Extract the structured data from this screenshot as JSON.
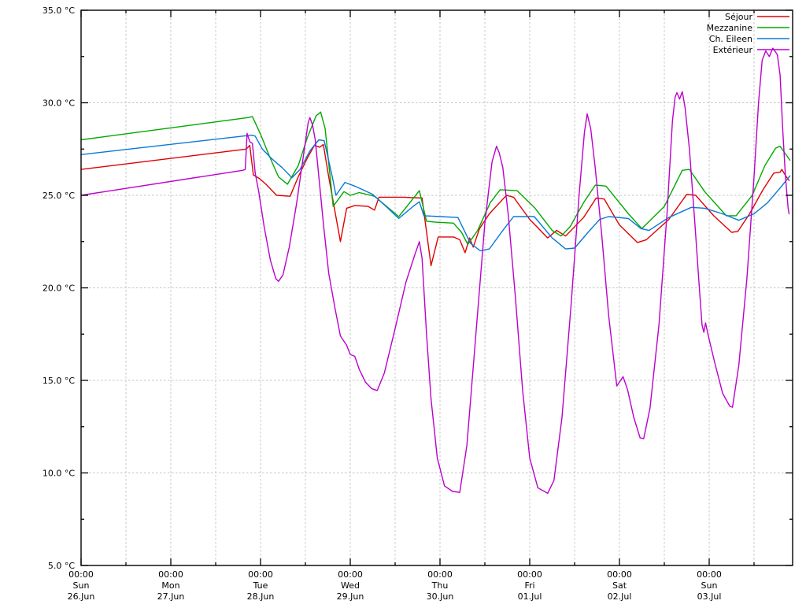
{
  "chart_data": {
    "type": "line",
    "title": "",
    "y_axis": {
      "min": 5,
      "max": 35,
      "major_step": 5,
      "minor_step": 2.5,
      "unit": "°C",
      "tick_values": [
        35,
        30,
        25,
        20,
        15,
        10,
        5
      ],
      "tick_labels": [
        "35.0 °C",
        "30.0 °C",
        "25.0 °C",
        "20.0 °C",
        "15.0 °C",
        "10.0 °C",
        "5.0 °C"
      ]
    },
    "x_axis": {
      "unit": "days",
      "range_days": [
        0,
        7.93
      ],
      "minor_step_days": 0.5,
      "majors": [
        {
          "day": 0,
          "time": "00:00",
          "weekday": "Sun",
          "date": "26.Jun"
        },
        {
          "day": 1,
          "time": "00:00",
          "weekday": "Mon",
          "date": "27.Jun"
        },
        {
          "day": 2,
          "time": "00:00",
          "weekday": "Tue",
          "date": "28.Jun"
        },
        {
          "day": 3,
          "time": "00:00",
          "weekday": "Wed",
          "date": "29.Jun"
        },
        {
          "day": 4,
          "time": "00:00",
          "weekday": "Thu",
          "date": "30.Jun"
        },
        {
          "day": 5,
          "time": "00:00",
          "weekday": "Fri",
          "date": "01.Jul"
        },
        {
          "day": 6,
          "time": "00:00",
          "weekday": "Sat",
          "date": "02.Jul"
        },
        {
          "day": 7,
          "time": "00:00",
          "weekday": "Sun",
          "date": "03.Jul"
        }
      ]
    },
    "grid": {
      "show": true,
      "style": "dashed",
      "color": "#c4c4c4"
    },
    "legend": {
      "position": "top-right",
      "entries": [
        "Séjour",
        "Mezzanine",
        "Ch. Eileen",
        "Extérieur"
      ]
    },
    "series": [
      {
        "name": "Séjour",
        "color": "#e00000",
        "points": [
          [
            0,
            26.4
          ],
          [
            1.84,
            27.5
          ],
          [
            1.88,
            27.7
          ],
          [
            1.92,
            26.1
          ],
          [
            1.99,
            25.9
          ],
          [
            2.06,
            25.6
          ],
          [
            2.18,
            25.0
          ],
          [
            2.33,
            24.95
          ],
          [
            2.42,
            26.0
          ],
          [
            2.52,
            27.0
          ],
          [
            2.6,
            27.7
          ],
          [
            2.66,
            27.6
          ],
          [
            2.7,
            27.75
          ],
          [
            2.76,
            26.0
          ],
          [
            2.89,
            22.5
          ],
          [
            2.96,
            24.3
          ],
          [
            3.05,
            24.45
          ],
          [
            3.2,
            24.4
          ],
          [
            3.27,
            24.2
          ],
          [
            3.32,
            24.9
          ],
          [
            3.6,
            24.9
          ],
          [
            3.8,
            24.85
          ],
          [
            3.9,
            21.2
          ],
          [
            3.98,
            22.75
          ],
          [
            4.15,
            22.75
          ],
          [
            4.22,
            22.6
          ],
          [
            4.28,
            21.9
          ],
          [
            4.33,
            22.7
          ],
          [
            4.37,
            22.2
          ],
          [
            4.44,
            23.2
          ],
          [
            4.55,
            24.0
          ],
          [
            4.74,
            25.0
          ],
          [
            4.82,
            24.9
          ],
          [
            5.0,
            23.7
          ],
          [
            5.2,
            22.7
          ],
          [
            5.3,
            23.1
          ],
          [
            5.4,
            22.8
          ],
          [
            5.6,
            23.8
          ],
          [
            5.74,
            24.85
          ],
          [
            5.83,
            24.8
          ],
          [
            6.0,
            23.4
          ],
          [
            6.2,
            22.45
          ],
          [
            6.3,
            22.6
          ],
          [
            6.55,
            23.7
          ],
          [
            6.75,
            25.05
          ],
          [
            6.85,
            25.0
          ],
          [
            7.05,
            23.9
          ],
          [
            7.25,
            23.0
          ],
          [
            7.32,
            23.05
          ],
          [
            7.45,
            24.0
          ],
          [
            7.6,
            25.3
          ],
          [
            7.72,
            26.2
          ],
          [
            7.79,
            26.25
          ],
          [
            7.81,
            26.4
          ],
          [
            7.86,
            26.0
          ],
          [
            7.89,
            25.8
          ]
        ]
      },
      {
        "name": "Mezzanine",
        "color": "#00a800",
        "points": [
          [
            0,
            28.0
          ],
          [
            1.86,
            29.2
          ],
          [
            1.91,
            29.25
          ],
          [
            2.0,
            28.3
          ],
          [
            2.1,
            27.1
          ],
          [
            2.2,
            26.0
          ],
          [
            2.3,
            25.6
          ],
          [
            2.42,
            26.6
          ],
          [
            2.52,
            28.1
          ],
          [
            2.62,
            29.3
          ],
          [
            2.67,
            29.5
          ],
          [
            2.72,
            28.6
          ],
          [
            2.81,
            24.4
          ],
          [
            2.93,
            25.2
          ],
          [
            3.0,
            25.0
          ],
          [
            3.1,
            25.15
          ],
          [
            3.27,
            24.95
          ],
          [
            3.54,
            23.85
          ],
          [
            3.77,
            25.25
          ],
          [
            3.85,
            23.6
          ],
          [
            3.95,
            23.55
          ],
          [
            4.15,
            23.5
          ],
          [
            4.24,
            23.0
          ],
          [
            4.31,
            22.35
          ],
          [
            4.42,
            23.1
          ],
          [
            4.56,
            24.6
          ],
          [
            4.67,
            25.3
          ],
          [
            4.86,
            25.25
          ],
          [
            5.06,
            24.3
          ],
          [
            5.25,
            23.1
          ],
          [
            5.35,
            22.8
          ],
          [
            5.45,
            23.3
          ],
          [
            5.6,
            24.6
          ],
          [
            5.73,
            25.55
          ],
          [
            5.85,
            25.5
          ],
          [
            6.1,
            24.0
          ],
          [
            6.25,
            23.2
          ],
          [
            6.5,
            24.4
          ],
          [
            6.7,
            26.35
          ],
          [
            6.78,
            26.4
          ],
          [
            6.95,
            25.2
          ],
          [
            7.19,
            23.9
          ],
          [
            7.3,
            23.9
          ],
          [
            7.48,
            25.0
          ],
          [
            7.62,
            26.6
          ],
          [
            7.74,
            27.55
          ],
          [
            7.79,
            27.65
          ],
          [
            7.87,
            27.1
          ],
          [
            7.9,
            26.9
          ]
        ]
      },
      {
        "name": "Ch. Eileen",
        "color": "#0878d8",
        "points": [
          [
            0,
            27.2
          ],
          [
            1.9,
            28.25
          ],
          [
            1.94,
            28.2
          ],
          [
            2.02,
            27.5
          ],
          [
            2.12,
            27.0
          ],
          [
            2.24,
            26.5
          ],
          [
            2.35,
            25.95
          ],
          [
            2.44,
            26.4
          ],
          [
            2.55,
            27.4
          ],
          [
            2.65,
            28.0
          ],
          [
            2.71,
            27.95
          ],
          [
            2.8,
            26.0
          ],
          [
            2.84,
            25.0
          ],
          [
            2.94,
            25.7
          ],
          [
            3.05,
            25.5
          ],
          [
            3.25,
            25.05
          ],
          [
            3.42,
            24.3
          ],
          [
            3.54,
            23.75
          ],
          [
            3.7,
            24.4
          ],
          [
            3.77,
            24.65
          ],
          [
            3.82,
            23.9
          ],
          [
            4.0,
            23.85
          ],
          [
            4.2,
            23.8
          ],
          [
            4.34,
            22.4
          ],
          [
            4.45,
            22.0
          ],
          [
            4.55,
            22.1
          ],
          [
            4.7,
            23.1
          ],
          [
            4.82,
            23.85
          ],
          [
            5.05,
            23.85
          ],
          [
            5.25,
            22.7
          ],
          [
            5.4,
            22.1
          ],
          [
            5.5,
            22.15
          ],
          [
            5.65,
            23.0
          ],
          [
            5.78,
            23.7
          ],
          [
            5.88,
            23.85
          ],
          [
            6.1,
            23.75
          ],
          [
            6.24,
            23.2
          ],
          [
            6.33,
            23.1
          ],
          [
            6.55,
            23.8
          ],
          [
            6.8,
            24.35
          ],
          [
            6.95,
            24.3
          ],
          [
            7.15,
            24.0
          ],
          [
            7.33,
            23.65
          ],
          [
            7.5,
            24.0
          ],
          [
            7.65,
            24.6
          ],
          [
            7.8,
            25.45
          ],
          [
            7.9,
            26.05
          ]
        ]
      },
      {
        "name": "Extérieur",
        "color": "#bc00cc",
        "points": [
          [
            0,
            25.0
          ],
          [
            1.8,
            26.35
          ],
          [
            1.83,
            26.4
          ],
          [
            1.85,
            28.35
          ],
          [
            1.88,
            27.9
          ],
          [
            1.91,
            27.8
          ],
          [
            1.94,
            26.2
          ],
          [
            1.98,
            25.2
          ],
          [
            2.04,
            23.3
          ],
          [
            2.11,
            21.5
          ],
          [
            2.17,
            20.5
          ],
          [
            2.2,
            20.35
          ],
          [
            2.25,
            20.7
          ],
          [
            2.32,
            22.2
          ],
          [
            2.4,
            24.5
          ],
          [
            2.48,
            27.2
          ],
          [
            2.53,
            28.9
          ],
          [
            2.55,
            29.2
          ],
          [
            2.58,
            28.8
          ],
          [
            2.61,
            28.0
          ],
          [
            2.65,
            26.0
          ],
          [
            2.7,
            23.5
          ],
          [
            2.76,
            20.8
          ],
          [
            2.83,
            18.9
          ],
          [
            2.89,
            17.4
          ],
          [
            2.96,
            16.9
          ],
          [
            3.0,
            16.4
          ],
          [
            3.05,
            16.3
          ],
          [
            3.1,
            15.6
          ],
          [
            3.17,
            14.9
          ],
          [
            3.24,
            14.55
          ],
          [
            3.3,
            14.45
          ],
          [
            3.38,
            15.4
          ],
          [
            3.5,
            17.8
          ],
          [
            3.62,
            20.3
          ],
          [
            3.72,
            21.8
          ],
          [
            3.77,
            22.5
          ],
          [
            3.8,
            21.6
          ],
          [
            3.85,
            17.5
          ],
          [
            3.9,
            14.0
          ],
          [
            3.97,
            10.8
          ],
          [
            4.05,
            9.3
          ],
          [
            4.14,
            9.0
          ],
          [
            4.22,
            8.95
          ],
          [
            4.3,
            11.5
          ],
          [
            4.4,
            17.5
          ],
          [
            4.5,
            23.5
          ],
          [
            4.58,
            26.8
          ],
          [
            4.63,
            27.65
          ],
          [
            4.66,
            27.3
          ],
          [
            4.7,
            26.5
          ],
          [
            4.76,
            24.0
          ],
          [
            4.84,
            19.5
          ],
          [
            4.92,
            14.5
          ],
          [
            5.0,
            10.8
          ],
          [
            5.09,
            9.2
          ],
          [
            5.2,
            8.9
          ],
          [
            5.27,
            9.6
          ],
          [
            5.36,
            13.0
          ],
          [
            5.46,
            19.0
          ],
          [
            5.55,
            25.0
          ],
          [
            5.61,
            28.4
          ],
          [
            5.64,
            29.4
          ],
          [
            5.68,
            28.6
          ],
          [
            5.73,
            26.5
          ],
          [
            5.8,
            23.0
          ],
          [
            5.88,
            18.5
          ],
          [
            5.97,
            14.7
          ],
          [
            6.04,
            15.2
          ],
          [
            6.09,
            14.5
          ],
          [
            6.16,
            13.0
          ],
          [
            6.23,
            11.9
          ],
          [
            6.27,
            11.85
          ],
          [
            6.34,
            13.5
          ],
          [
            6.44,
            18.0
          ],
          [
            6.53,
            24.0
          ],
          [
            6.59,
            29.0
          ],
          [
            6.62,
            30.3
          ],
          [
            6.64,
            30.55
          ],
          [
            6.67,
            30.2
          ],
          [
            6.7,
            30.6
          ],
          [
            6.73,
            29.8
          ],
          [
            6.78,
            27.5
          ],
          [
            6.84,
            23.5
          ],
          [
            6.89,
            20.0
          ],
          [
            6.92,
            18.0
          ],
          [
            6.94,
            17.6
          ],
          [
            6.96,
            18.1
          ],
          [
            6.99,
            17.4
          ],
          [
            7.06,
            16.0
          ],
          [
            7.15,
            14.3
          ],
          [
            7.23,
            13.6
          ],
          [
            7.26,
            13.55
          ],
          [
            7.33,
            15.8
          ],
          [
            7.42,
            20.5
          ],
          [
            7.5,
            26.0
          ],
          [
            7.55,
            30.0
          ],
          [
            7.59,
            32.3
          ],
          [
            7.63,
            32.8
          ],
          [
            7.67,
            32.5
          ],
          [
            7.71,
            32.95
          ],
          [
            7.76,
            32.6
          ],
          [
            7.79,
            31.5
          ],
          [
            7.82,
            28.5
          ],
          [
            7.85,
            26.0
          ],
          [
            7.88,
            24.3
          ],
          [
            7.89,
            24.0
          ]
        ]
      }
    ]
  }
}
